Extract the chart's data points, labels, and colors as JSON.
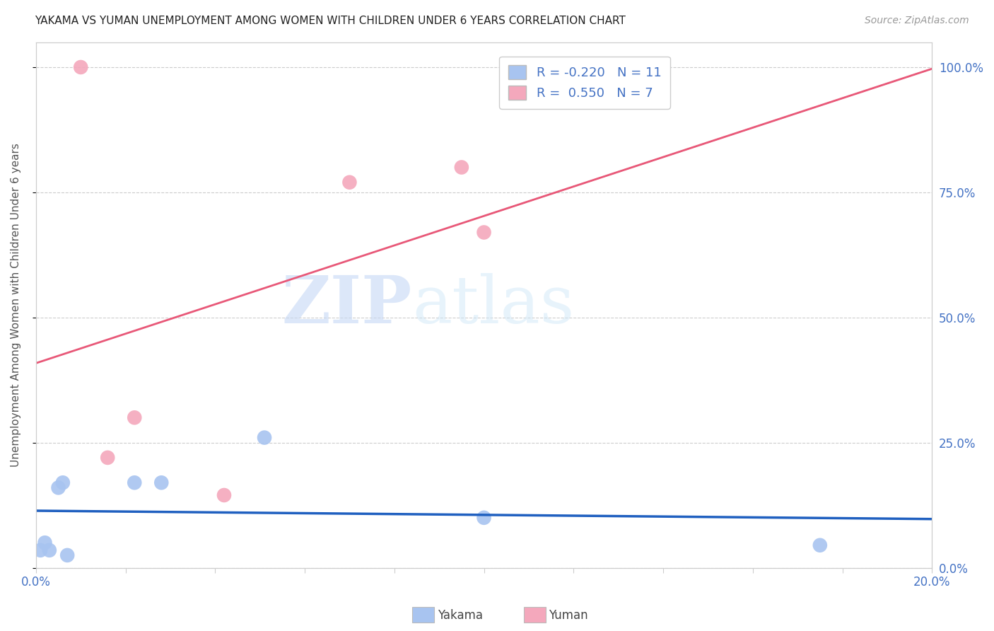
{
  "title": "YAKAMA VS YUMAN UNEMPLOYMENT AMONG WOMEN WITH CHILDREN UNDER 6 YEARS CORRELATION CHART",
  "source": "Source: ZipAtlas.com",
  "ylabel": "Unemployment Among Women with Children Under 6 years",
  "x_min": 0.0,
  "x_max": 0.2,
  "y_min": 0.0,
  "y_max": 1.05,
  "x_ticks": [
    0.0,
    0.02,
    0.04,
    0.06,
    0.08,
    0.1,
    0.12,
    0.14,
    0.16,
    0.18,
    0.2
  ],
  "y_ticks": [
    0.0,
    0.25,
    0.5,
    0.75,
    1.0
  ],
  "y_tick_labels_right": [
    "0.0%",
    "25.0%",
    "50.0%",
    "75.0%",
    "100.0%"
  ],
  "yakama_x": [
    0.001,
    0.002,
    0.003,
    0.005,
    0.006,
    0.007,
    0.022,
    0.028,
    0.051,
    0.1,
    0.175
  ],
  "yakama_y": [
    0.035,
    0.05,
    0.035,
    0.16,
    0.17,
    0.025,
    0.17,
    0.17,
    0.26,
    0.1,
    0.045
  ],
  "yuman_x": [
    0.01,
    0.016,
    0.022,
    0.042,
    0.07,
    0.095,
    0.1
  ],
  "yuman_y": [
    1.0,
    0.22,
    0.3,
    0.145,
    0.77,
    0.8,
    0.67
  ],
  "yakama_color": "#a8c4f0",
  "yuman_color": "#f4a8bc",
  "yakama_line_color": "#2060c0",
  "yuman_line_color": "#e85878",
  "yakama_R": -0.22,
  "yuman_R": 0.55,
  "yakama_N": 11,
  "yuman_N": 7,
  "watermark_zip": "ZIP",
  "watermark_atlas": "atlas",
  "legend_label1": "Yakama",
  "legend_label2": "Yuman",
  "background_color": "#ffffff",
  "grid_color": "#cccccc"
}
